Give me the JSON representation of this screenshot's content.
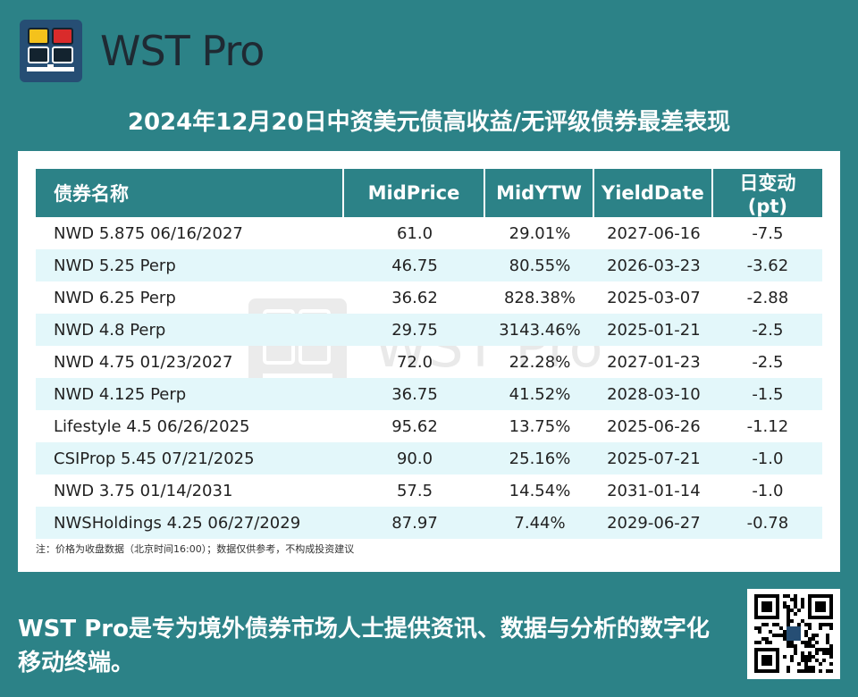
{
  "brand": {
    "name": "WST Pro",
    "logo_colors": {
      "primary": "#264e74",
      "yellow": "#f4c21c",
      "red": "#d92b2b",
      "dark": "#13232f"
    }
  },
  "title": "2024年12月20日中资美元债高收益/无评级债券最差表现",
  "table": {
    "headers": [
      "债券名称",
      "MidPrice",
      "MidYTW",
      "YieldDate",
      "日变动(pt)"
    ],
    "rows": [
      [
        "NWD 5.875 06/16/2027",
        "61.0",
        "29.01%",
        "2027-06-16",
        "-7.5"
      ],
      [
        "NWD 5.25 Perp",
        "46.75",
        "80.55%",
        "2026-03-23",
        "-3.62"
      ],
      [
        "NWD 6.25 Perp",
        "36.62",
        "828.38%",
        "2025-03-07",
        "-2.88"
      ],
      [
        "NWD 4.8 Perp",
        "29.75",
        "3143.46%",
        "2025-01-21",
        "-2.5"
      ],
      [
        "NWD 4.75 01/23/2027",
        "72.0",
        "22.28%",
        "2027-01-23",
        "-2.5"
      ],
      [
        "NWD 4.125 Perp",
        "36.75",
        "41.52%",
        "2028-03-10",
        "-1.5"
      ],
      [
        "Lifestyle 4.5 06/26/2025",
        "95.62",
        "13.75%",
        "2025-06-26",
        "-1.12"
      ],
      [
        "CSIProp 5.45 07/21/2025",
        "90.0",
        "25.16%",
        "2025-07-21",
        "-1.0"
      ],
      [
        "NWD 3.75 01/14/2031",
        "57.5",
        "14.54%",
        "2031-01-14",
        "-1.0"
      ],
      [
        "NWSHoldings 4.25 06/27/2029",
        "87.97",
        "7.44%",
        "2029-06-27",
        "-0.78"
      ]
    ]
  },
  "note": "注：价格为收盘数据（北京时间16:00）；数据仅供参考，不构成投资建议",
  "footer": {
    "text": "WST Pro是专为境外债券市场人士提供资讯、数据与分析的数字化移动终端。",
    "qr_icon": "qr-code-icon"
  },
  "colors": {
    "accent": "#2c8287",
    "row_alt": "#e3f7fa"
  }
}
